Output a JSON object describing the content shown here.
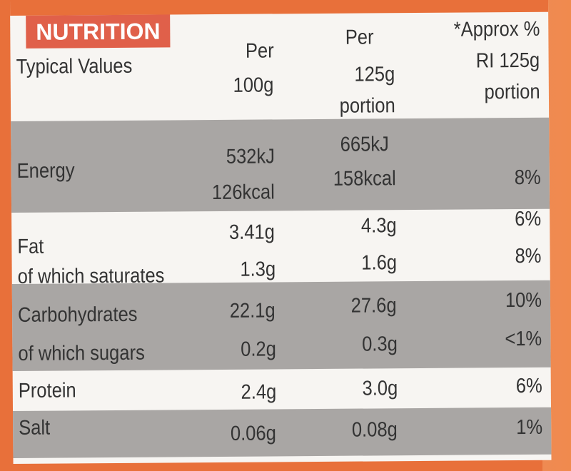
{
  "title": "NUTRITION",
  "headers": {
    "label": "Typical Values",
    "col1": [
      "Per",
      "100g"
    ],
    "col2": [
      "Per",
      "125g",
      "portion"
    ],
    "col3": [
      "*Approx %",
      "RI 125g",
      "portion"
    ]
  },
  "rows": [
    {
      "name": "Energy",
      "per100": [
        "532kJ",
        "126kcal"
      ],
      "portion": [
        "665kJ",
        "158kcal"
      ],
      "ri": "8%"
    },
    {
      "name": "Fat",
      "per100": "3.41g",
      "portion": "4.3g",
      "ri": "6%"
    },
    {
      "name": "of which saturates",
      "per100": "1.3g",
      "portion": "1.6g",
      "ri": "8%"
    },
    {
      "name": "Carbohydrates",
      "per100": "22.1g",
      "portion": "27.6g",
      "ri": "10%"
    },
    {
      "name": "of which sugars",
      "per100": "0.2g",
      "portion": "0.3g",
      "ri": "<1%"
    },
    {
      "name": "Protein",
      "per100": "2.4g",
      "portion": "3.0g",
      "ri": "6%"
    },
    {
      "name": "Salt",
      "per100": "0.06g",
      "portion": "0.08g",
      "ri": "1%"
    }
  ],
  "colors": {
    "background": "#e8703a",
    "title_band": "#e0604a",
    "shaded_row": "#a9a6a4",
    "label": "#f7f5f2"
  }
}
